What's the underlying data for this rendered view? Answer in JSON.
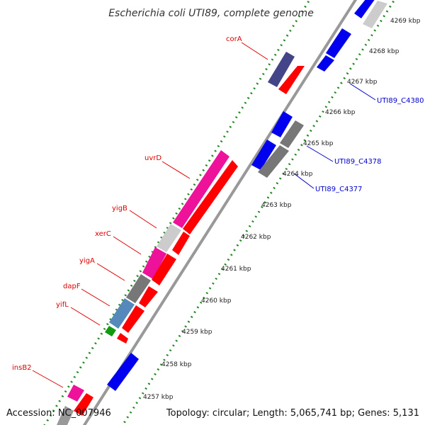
{
  "title": "Escherichia coli UTI89, complete genome",
  "footer": {
    "accession": "Accession: NC_007946",
    "topology": "Topology: circular; Length: 5,065,741 bp; Genes: 5,131"
  },
  "scale_labels": [
    "4269 kbp",
    "4268 kbp",
    "4267 kbp",
    "4266 kbp",
    "4265 kbp",
    "4264 kbp",
    "4263 kbp",
    "4262 kbp",
    "4261 kbp",
    "4260 kbp",
    "4259 kbp",
    "4258 kbp",
    "4257 kbp"
  ],
  "gene_labels": [
    "corA",
    "uvrD",
    "yigB",
    "xerC",
    "yigA",
    "dapF",
    "yifL",
    "insB2"
  ],
  "locus_labels": [
    "UTI89_C4380",
    "UTI89_C4378",
    "UTI89_C4377"
  ],
  "colors": {
    "backbone": "#999999",
    "dotted_track": "#228822",
    "gene_label": "#dd0000",
    "locus_label": "#0000cc",
    "red_feature": "#ff0000",
    "blue_feature": "#0000ee",
    "magenta_feature": "#ee1199",
    "gray_feature": "#777777",
    "lightgray_feature": "#cccccc",
    "purple_feature": "#444488",
    "steelblue_feature": "#5588bb",
    "green_feature": "#119911"
  }
}
